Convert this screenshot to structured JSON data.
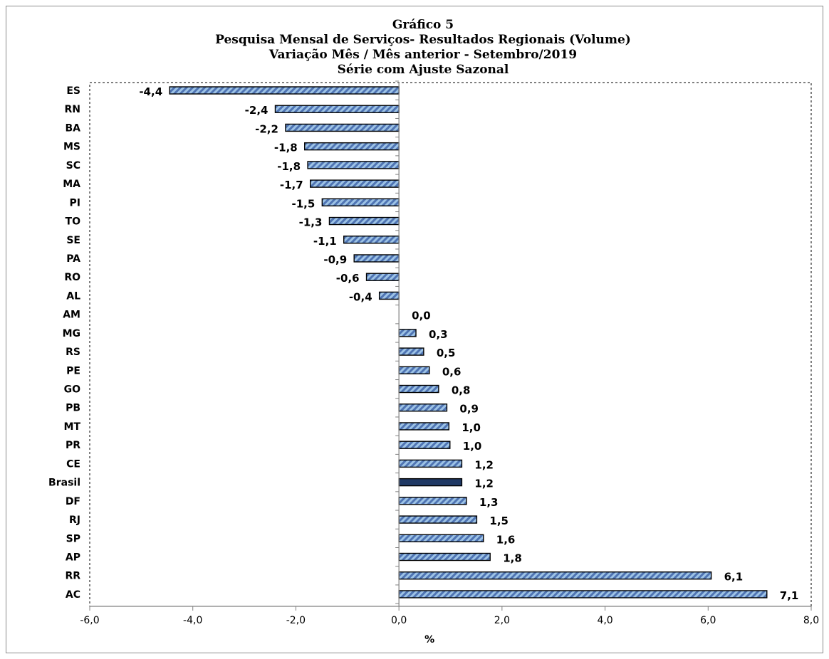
{
  "chart_data": {
    "type": "bar",
    "orientation": "horizontal",
    "title_lines": [
      "Gráfico 5",
      "Pesquisa Mensal de Serviços- Resultados Regionais (Volume)",
      "Variação Mês / Mês anterior - Setembro/2019",
      "Série com Ajuste Sazonal"
    ],
    "xlabel": "%",
    "xlim": [
      -6,
      8
    ],
    "xticks": [
      -6,
      -4,
      -2,
      0,
      2,
      4,
      6,
      8
    ],
    "xtick_labels": [
      "-6,0",
      "-4,0",
      "-2,0",
      "0,0",
      "2,0",
      "4,0",
      "6,0",
      "8,0"
    ],
    "categories": [
      "ES",
      "RN",
      "BA",
      "MS",
      "SC",
      "MA",
      "PI",
      "TO",
      "SE",
      "PA",
      "RO",
      "AL",
      "AM",
      "MG",
      "RS",
      "PE",
      "GO",
      "PB",
      "MT",
      "PR",
      "CE",
      "Brasil",
      "DF",
      "RJ",
      "SP",
      "AP",
      "RR",
      "AC"
    ],
    "values": [
      -4.45,
      -2.4,
      -2.2,
      -1.83,
      -1.77,
      -1.72,
      -1.49,
      -1.35,
      -1.07,
      -0.87,
      -0.63,
      -0.38,
      0.0,
      0.33,
      0.48,
      0.59,
      0.77,
      0.93,
      0.97,
      0.99,
      1.22,
      1.22,
      1.31,
      1.51,
      1.64,
      1.77,
      6.06,
      7.14
    ],
    "value_labels": [
      "-4,4",
      "-2,4",
      "-2,2",
      "-1,8",
      "-1,8",
      "-1,7",
      "-1,5",
      "-1,3",
      "-1,1",
      "-0,9",
      "-0,6",
      "-0,4",
      "0,0",
      "0,3",
      "0,5",
      "0,6",
      "0,8",
      "0,9",
      "1,0",
      "1,0",
      "1,2",
      "1,2",
      "1,3",
      "1,5",
      "1,6",
      "1,8",
      "6,1",
      "7,1"
    ],
    "highlight_category": "Brasil",
    "grid": false,
    "legend": "none",
    "colors": {
      "bar_fill": "#9dc3e6",
      "bar_hatch": "#4f74b3",
      "highlight_fill": "#1f3864",
      "bar_outline": "#000000",
      "axis": "#808080"
    }
  }
}
